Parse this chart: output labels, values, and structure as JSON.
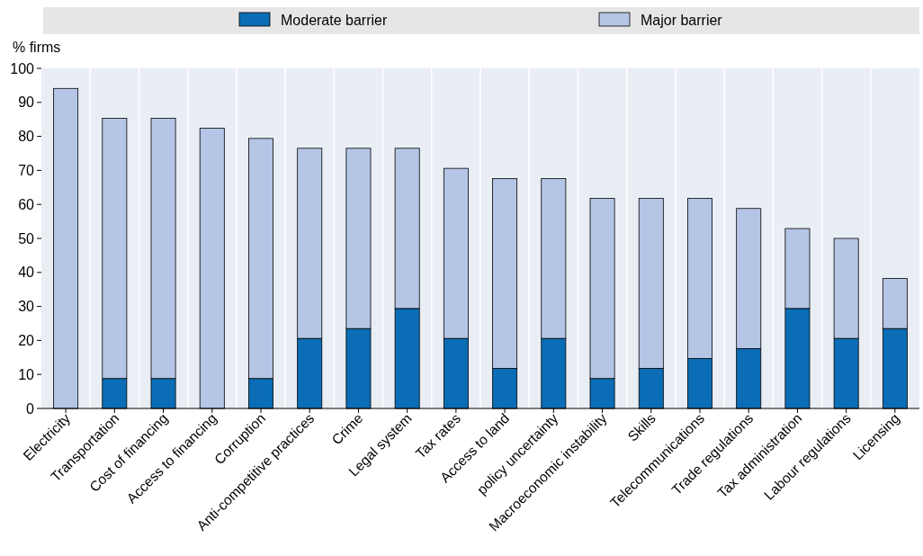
{
  "chart_data": {
    "type": "bar",
    "stacked": true,
    "ylabel": "% firms",
    "categories": [
      "Electricity",
      "Transportation",
      "Cost of financing",
      "Access to financing",
      "Corruption",
      "Anti-competitive practices",
      "Crime",
      "Legal system",
      "Tax rates",
      "Access to land",
      "policy uncertainty",
      "Macroeconomic instability",
      "Skills",
      "Telecommunications",
      "Trade regulations",
      "Tax administration",
      "Labour regulations",
      "Licensing"
    ],
    "series": [
      {
        "name": "Moderate barrier",
        "color": "#0b6db5",
        "values": [
          0,
          8.8,
          8.8,
          0,
          8.8,
          20.6,
          23.5,
          29.4,
          20.6,
          11.8,
          20.6,
          8.8,
          11.8,
          14.7,
          17.6,
          29.4,
          20.6,
          23.5
        ]
      },
      {
        "name": "Major barrier",
        "color": "#b4c5e5",
        "values": [
          94.1,
          76.5,
          76.5,
          82.4,
          70.6,
          55.9,
          53,
          47.1,
          50,
          55.8,
          47,
          53,
          50,
          47.1,
          41.2,
          23.5,
          29.4,
          14.7
        ]
      }
    ],
    "ylim": [
      0,
      100
    ],
    "yticks": [
      0,
      10,
      20,
      30,
      40,
      50,
      60,
      70,
      80,
      90,
      100
    ],
    "grid": "x",
    "legend": "top"
  }
}
